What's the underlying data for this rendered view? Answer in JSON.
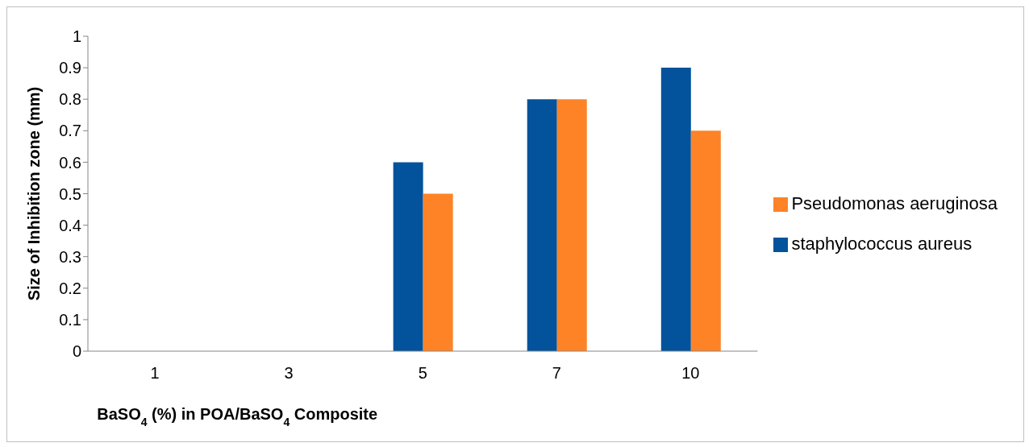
{
  "chart_data": {
    "type": "bar",
    "xlabel": "BaSO$_{4}$ (%) in POA/BaSO$_{4}$ Composite",
    "ylabel": "Size of Inhibition zone (mm)",
    "categories": [
      "1",
      "3",
      "5",
      "7",
      "10"
    ],
    "series": [
      {
        "name": "staphylococcus aureus",
        "color": "#02529c",
        "values": [
          0,
          0,
          0.6,
          0.8,
          0.9
        ]
      },
      {
        "name": "Pseudomonas aeruginosa",
        "color": "#fe8327",
        "values": [
          0,
          0,
          0.5,
          0.8,
          0.7
        ]
      }
    ],
    "ylim": [
      0,
      1
    ],
    "yticks": [
      0,
      0.1,
      0.2,
      0.3,
      0.4,
      0.5,
      0.6,
      0.7,
      0.8,
      0.9,
      1
    ],
    "grid": false,
    "legend": "right"
  }
}
